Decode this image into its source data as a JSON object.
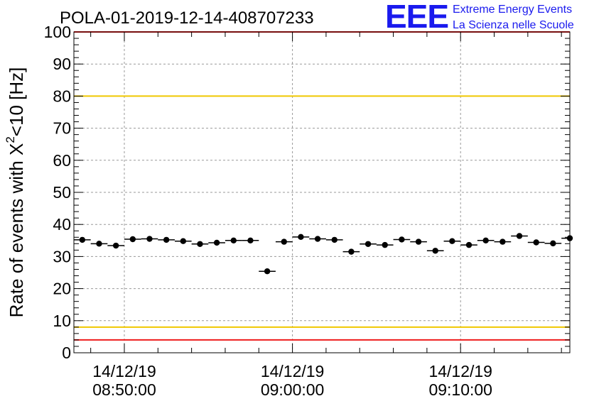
{
  "chart_data": {
    "type": "scatter",
    "title": "POLA-01-2019-12-14-408707233",
    "ylabel": "Rate of events with X",
    "ylabel_sup": "2",
    "ylabel_tail": "<10 [Hz]",
    "ylim": [
      0,
      100
    ],
    "xlim_minutes": [
      0,
      29.5
    ],
    "y_ticks": [
      0,
      10,
      20,
      30,
      40,
      50,
      60,
      70,
      80,
      90,
      100
    ],
    "x_ticks": [
      {
        "date": "14/12/19",
        "time": "08:50:00",
        "minute": 3
      },
      {
        "date": "14/12/19",
        "time": "09:00:00",
        "minute": 13
      },
      {
        "date": "14/12/19",
        "time": "09:10:00",
        "minute": 23
      }
    ],
    "grid": true,
    "reference_lines": [
      {
        "y": 80,
        "color": "#f0c800"
      },
      {
        "y": 8,
        "color": "#f0c800"
      },
      {
        "y": 100,
        "color": "#ee1c1c"
      },
      {
        "y": 4,
        "color": "#ee1c1c"
      }
    ],
    "series": [
      {
        "x": [
          0.5,
          1.5,
          2.5,
          3.5,
          4.5,
          5.5,
          6.5,
          7.5,
          8.5,
          9.5,
          10.5,
          11.5,
          12.5,
          13.5,
          14.5,
          15.5,
          16.5,
          17.5,
          18.5,
          19.5,
          20.5,
          21.5,
          22.5,
          23.5,
          24.5,
          25.5,
          26.5,
          27.5,
          28.5,
          29.5
        ],
        "y": [
          35.2,
          34.0,
          33.4,
          35.4,
          35.5,
          35.2,
          34.8,
          33.9,
          34.3,
          35.0,
          35.0,
          25.4,
          34.6,
          36.1,
          35.5,
          35.2,
          31.5,
          33.9,
          33.6,
          35.3,
          34.6,
          31.8,
          34.8,
          33.6,
          35.0,
          34.6,
          36.4,
          34.4,
          34.1,
          35.7
        ],
        "color": "#000000"
      }
    ]
  },
  "logo": {
    "mark": "EEE",
    "line1": "Extreme Energy Events",
    "line2": "La Scienza nelle Scuole",
    "color": "#1a1aee"
  }
}
